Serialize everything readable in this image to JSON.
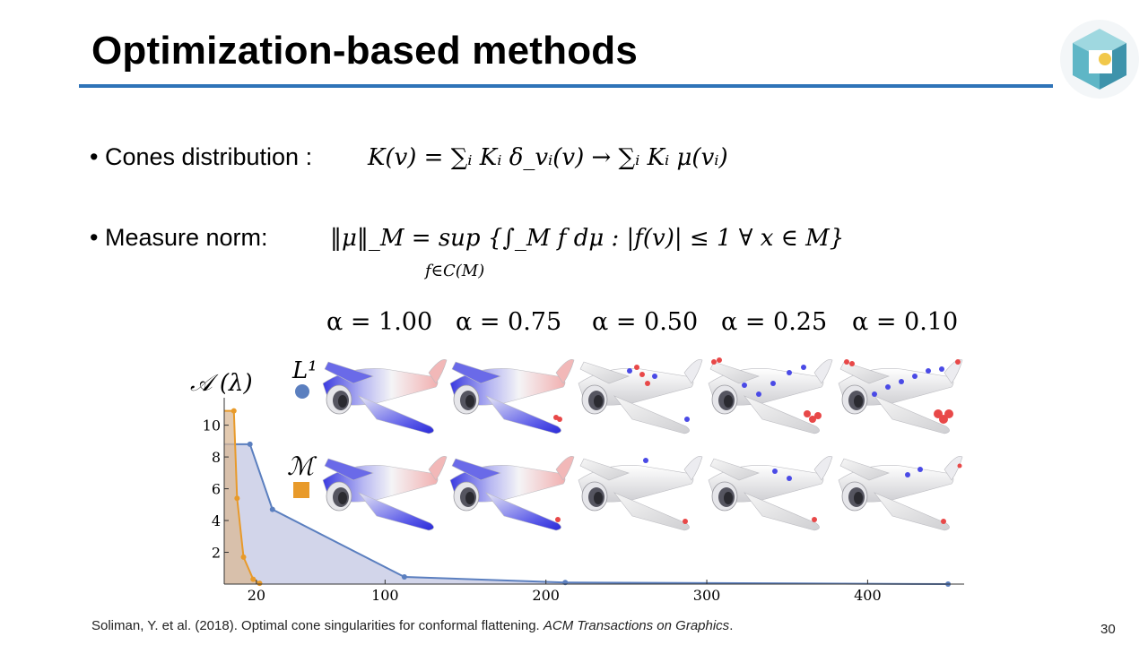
{
  "slide": {
    "title": "Optimization-based methods",
    "page_number": "30"
  },
  "bullets": {
    "cones_label": "• Cones distribution :",
    "cones_formula": "K(v) = ∑ᵢ Kᵢ δ_vᵢ(v) → ∑ᵢ Kᵢ μ(vᵢ)",
    "measure_label": "• Measure norm:",
    "measure_formula": "‖μ‖_M = sup {∫_M f dμ : |f(v)| ≤ 1 ∀ x ∈ M}",
    "measure_sub": "f∈C(M)"
  },
  "figure": {
    "alpha_labels": [
      "α = 1.00",
      "α = 0.75",
      "α = 0.50",
      "α = 0.25",
      "α = 0.10"
    ],
    "row_labels": [
      "L¹",
      "ℳ"
    ],
    "colors": {
      "L1": "#5b7fbf",
      "M": "#e89a2a",
      "cone_pos": "#e84848",
      "cone_neg": "#4a4ae6",
      "accent": "#2e73b8"
    }
  },
  "chart_data": {
    "type": "area",
    "ylabel": "𝒜 (λ)",
    "x_ticks": [
      "20",
      "100",
      "200",
      "300",
      "400"
    ],
    "y_ticks": [
      "2",
      "4",
      "6",
      "8",
      "10"
    ],
    "xlim": [
      0,
      460
    ],
    "ylim": [
      0,
      11.5
    ],
    "series": [
      {
        "name": "L¹",
        "x": [
          16,
          30,
          112,
          212,
          450
        ],
        "y": [
          8.8,
          4.7,
          0.45,
          0.1,
          0.0
        ]
      },
      {
        "name": "ℳ",
        "x": [
          6,
          8,
          12,
          18,
          22
        ],
        "y": [
          10.9,
          5.4,
          1.7,
          0.3,
          0.05
        ]
      }
    ]
  },
  "citation": {
    "text": "Soliman, Y. et al. (2018). Optimal cone singularities for conformal flattening. ",
    "journal": "ACM Transactions on Graphics",
    "end": "."
  }
}
